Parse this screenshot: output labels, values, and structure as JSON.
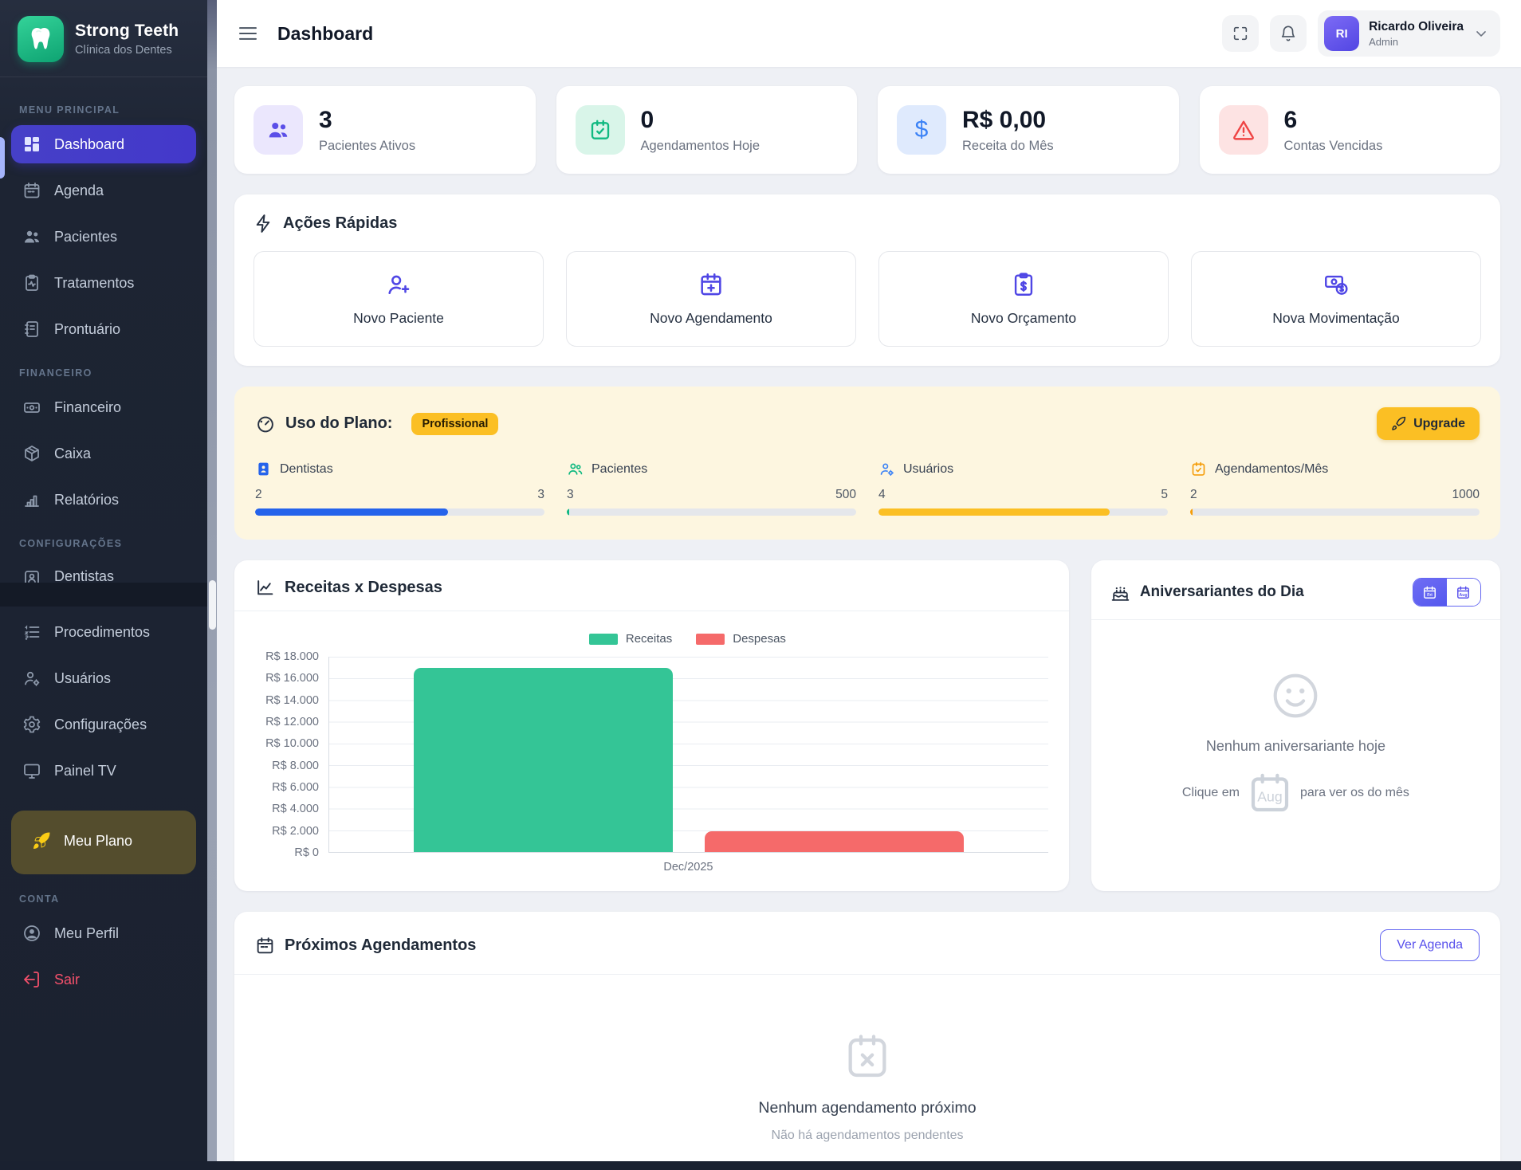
{
  "app": {
    "name": "Strong Teeth",
    "tagline": "Clínica dos Dentes"
  },
  "sidebar": {
    "sections": [
      {
        "label": "MENU PRINCIPAL",
        "items": [
          {
            "label": "Dashboard"
          },
          {
            "label": "Agenda"
          },
          {
            "label": "Pacientes"
          },
          {
            "label": "Tratamentos"
          },
          {
            "label": "Prontuário"
          }
        ]
      },
      {
        "label": "FINANCEIRO",
        "items": [
          {
            "label": "Financeiro"
          },
          {
            "label": "Caixa"
          },
          {
            "label": "Relatórios"
          }
        ]
      },
      {
        "label": "CONFIGURAÇÕES",
        "items": [
          {
            "label": "Dentistas"
          },
          {
            "label": "Procedimentos"
          },
          {
            "label": "Usuários"
          },
          {
            "label": "Configurações"
          },
          {
            "label": "Painel TV"
          },
          {
            "label": "Meu Plano"
          }
        ]
      },
      {
        "label": "CONTA",
        "items": [
          {
            "label": "Meu Perfil"
          },
          {
            "label": "Sair"
          }
        ]
      }
    ]
  },
  "header": {
    "title": "Dashboard",
    "user": {
      "initials": "RI",
      "name": "Ricardo Oliveira",
      "role": "Admin"
    }
  },
  "stats": [
    {
      "value": "3",
      "label": "Pacientes Ativos"
    },
    {
      "value": "0",
      "label": "Agendamentos Hoje"
    },
    {
      "value": "R$ 0,00",
      "label": "Receita do Mês"
    },
    {
      "value": "6",
      "label": "Contas Vencidas"
    }
  ],
  "quick_actions": {
    "title": "Ações Rápidas",
    "items": [
      {
        "label": "Novo Paciente"
      },
      {
        "label": "Novo Agendamento"
      },
      {
        "label": "Novo Orçamento"
      },
      {
        "label": "Nova Movimentação"
      }
    ]
  },
  "plan": {
    "title": "Uso do Plano:",
    "badge": "Profissional",
    "upgrade_label": "Upgrade",
    "metrics": [
      {
        "label": "Dentistas",
        "current": 2,
        "max": 3,
        "color": "#2563eb"
      },
      {
        "label": "Pacientes",
        "current": 3,
        "max": 500,
        "color": "#10b981"
      },
      {
        "label": "Usuários",
        "current": 4,
        "max": 5,
        "color": "#fbbf24"
      },
      {
        "label": "Agendamentos/Mês",
        "current": 2,
        "max": 1000,
        "color": "#f59e0b"
      }
    ]
  },
  "chart_card": {
    "title": "Receitas x Despesas"
  },
  "chart_data": {
    "type": "bar",
    "title": "Receitas x Despesas",
    "categories": [
      "Dec/2025"
    ],
    "series": [
      {
        "name": "Receitas",
        "values": [
          17000
        ],
        "color": "#34c596"
      },
      {
        "name": "Despesas",
        "values": [
          1900
        ],
        "color": "#f56a6a"
      }
    ],
    "xlabel": "",
    "ylabel": "",
    "ylim": [
      0,
      18000
    ],
    "yticks": [
      "R$ 18.000",
      "R$ 16.000",
      "R$ 14.000",
      "R$ 12.000",
      "R$ 10.000",
      "R$ 8.000",
      "R$ 6.000",
      "R$ 4.000",
      "R$ 2.000",
      "R$ 0"
    ],
    "grid": true,
    "legend_position": "top"
  },
  "birthdays": {
    "title": "Aniversariantes do Dia",
    "toggle_day": "Fri",
    "toggle_month": "Aug",
    "empty_title": "Nenhum aniversariante hoje",
    "hint_prefix": "Clique em",
    "hint_month": "Aug",
    "hint_suffix": "para ver os do mês"
  },
  "appointments": {
    "title": "Próximos Agendamentos",
    "button": "Ver Agenda",
    "empty_title": "Nenhum agendamento próximo",
    "empty_subtitle": "Não há agendamentos pendentes"
  }
}
